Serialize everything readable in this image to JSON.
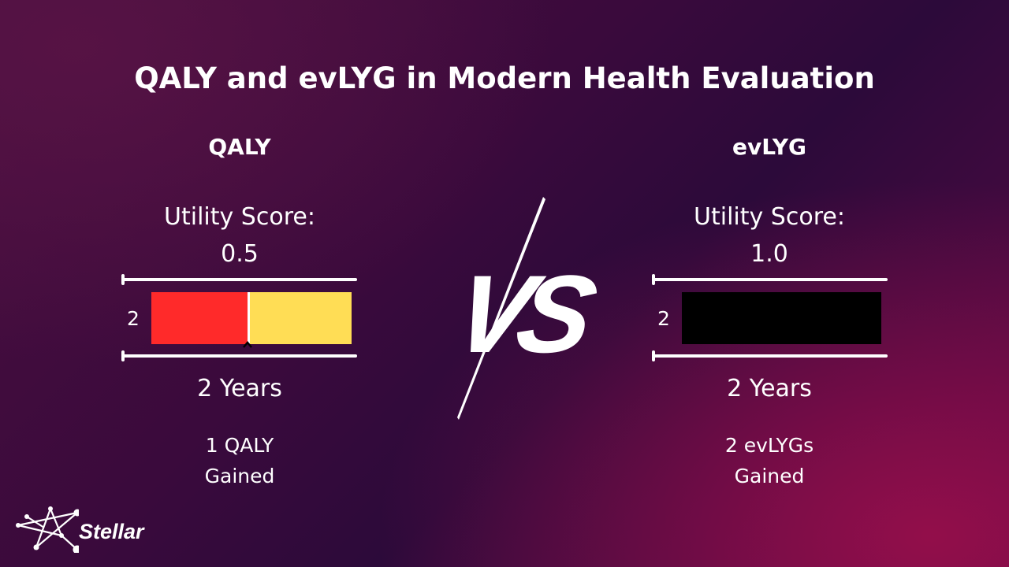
{
  "title": "QALY and evLYG in Modern Health Evaluation",
  "left": {
    "heading": "QALY",
    "utility_label": "Utility Score:",
    "utility_value": "0.5",
    "axis_value": "2",
    "years": "2 Years",
    "result_line1": "1 QALY",
    "result_line2": "Gained",
    "utility_fraction": 0.5,
    "colors": {
      "used": "#ff2a2a",
      "lost": "#ffdd55"
    }
  },
  "vs": "VS",
  "right": {
    "heading": "evLYG",
    "utility_label": "Utility Score:",
    "utility_value": "1.0",
    "axis_value": "2",
    "years": "2 Years",
    "result_line1": "2 evLYGs",
    "result_line2": "Gained",
    "utility_fraction": 1.0,
    "colors": {
      "bar": "#000000"
    }
  },
  "logo": {
    "name": "Stellar",
    "icon": "star-network-icon"
  }
}
